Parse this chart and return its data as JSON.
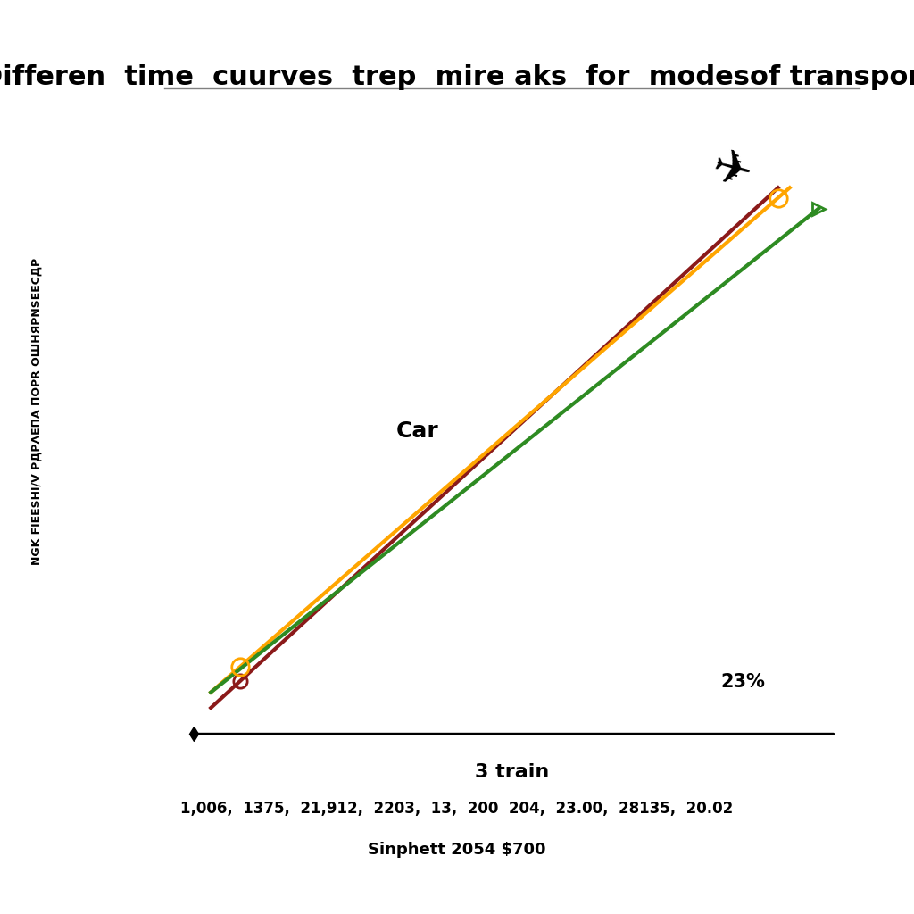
{
  "title": "Differen  time  cuurves  trep  mire aks  for  modesof transport",
  "xlabel": "3 train",
  "xlabel2": "1,006,  1375,  21,912,  2203,  13,  200  204,  23.00,  28135,  20.02",
  "xlabel3": "Sinphett 2054 $700",
  "ylabel": "NGK FIEESHI/V РДPΛЕПA ПОPR OШHЯPNSЕЕСДР",
  "percent_label": "23%",
  "car_label": "Car",
  "line1_color": "#8B1A1A",
  "line2_color": "#FFA500",
  "line3_color": "#2E8B22",
  "background_color": "#FFFFFF",
  "figsize": [
    10.24,
    10.24
  ],
  "dpi": 100,
  "title_fontsize": 22,
  "ylabel_fontsize": 9
}
